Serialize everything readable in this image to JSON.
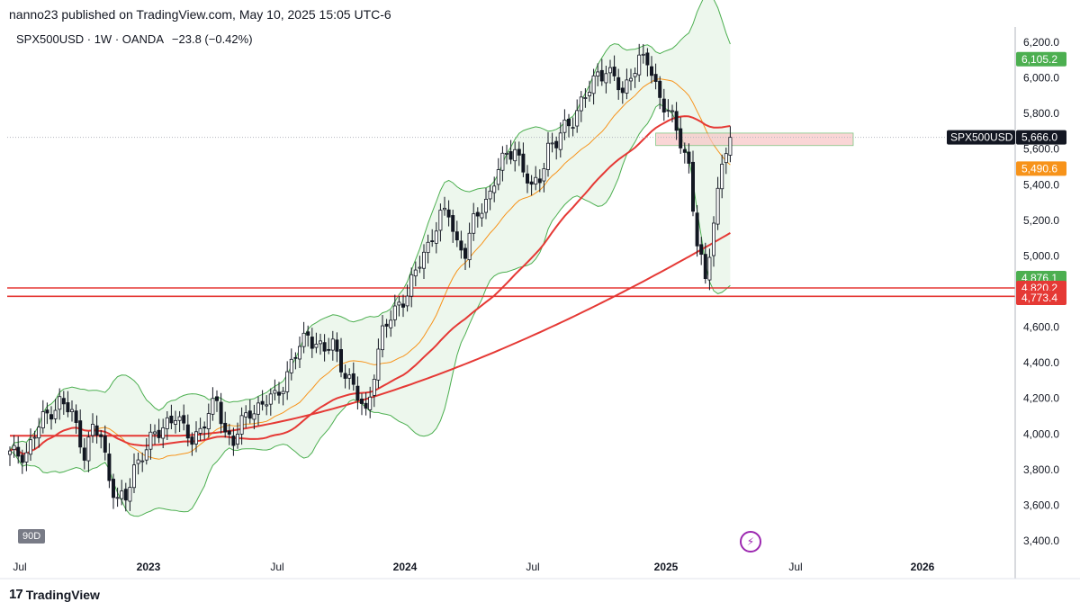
{
  "header": {
    "published": "nanno23 published on TradingView.com, May 10, 2025 15:05 UTC-6"
  },
  "symbol": {
    "name": "SPX500USD · 1W · OANDA",
    "change": "−23.8 (−0.42%)"
  },
  "footer": {
    "brand": "TradingView",
    "logo_icon": "tradingview-logo-icon"
  },
  "interval_badge": "90D",
  "flash_icon": "lightning-icon",
  "colors": {
    "candle": "#131722",
    "bb": "#4caf50",
    "bb_fill": "#e8f5e9",
    "basis": "#f7931a",
    "ma": "#e53935",
    "zone": "#f8c6c6",
    "grid": "#b2b5be"
  },
  "chart_data": {
    "type": "candlestick",
    "title": "SPX500USD · 1W · OANDA",
    "ylim": [
      3300,
      6300
    ],
    "y_ticks": [
      "6,200.0",
      "6,000.0",
      "5,800.0",
      "5,600.0",
      "5,400.0",
      "5,200.0",
      "5,000.0",
      "4,800.0",
      "4,600.0",
      "4,400.0",
      "4,200.0",
      "4,000.0",
      "3,800.0",
      "3,600.0",
      "3,400.0"
    ],
    "x_ticks": [
      "Jul",
      "2023",
      "Jul",
      "2024",
      "Jul",
      "2025",
      "Jul",
      "2026"
    ],
    "price_labels": [
      {
        "name": "bb-upper",
        "text": "6,105.2",
        "value": 6105.2,
        "color": "#4caf50"
      },
      {
        "name": "last-price",
        "text": "5,666.0",
        "prefix": "SPX500USD",
        "value": 5666.0,
        "color": "#131722"
      },
      {
        "name": "bb-basis",
        "text": "5,490.6",
        "value": 5490.6,
        "color": "#f7931a"
      },
      {
        "name": "bb-lower",
        "text": "4,876.1",
        "value": 4876.1,
        "color": "#4caf50"
      },
      {
        "name": "support-1",
        "text": "4,820.2",
        "value": 4820.2,
        "color": "#e53935"
      },
      {
        "name": "support-2",
        "text": "4,773.4",
        "value": 4773.4,
        "color": "#e53935"
      }
    ],
    "horizontal_lines": [
      4820.2,
      4773.4
    ],
    "last_price": 5666.0,
    "zone": {
      "low": 5620,
      "high": 5690,
      "from_week": 156,
      "to_week": 192
    },
    "ohlc_anchor_points": [
      [
        0,
        3880
      ],
      [
        4,
        3900
      ],
      [
        8,
        4080
      ],
      [
        10,
        4140
      ],
      [
        12,
        4180
      ],
      [
        15,
        4110
      ],
      [
        18,
        3900
      ],
      [
        20,
        4020
      ],
      [
        22,
        3980
      ],
      [
        24,
        3760
      ],
      [
        26,
        3640
      ],
      [
        28,
        3620
      ],
      [
        30,
        3810
      ],
      [
        32,
        3900
      ],
      [
        34,
        3960
      ],
      [
        36,
        4000
      ],
      [
        38,
        4080
      ],
      [
        40,
        4110
      ],
      [
        42,
        4010
      ],
      [
        44,
        3970
      ],
      [
        46,
        4040
      ],
      [
        48,
        4100
      ],
      [
        50,
        4180
      ],
      [
        52,
        4020
      ],
      [
        54,
        3960
      ],
      [
        56,
        4050
      ],
      [
        58,
        4130
      ],
      [
        60,
        4160
      ],
      [
        62,
        4180
      ],
      [
        64,
        4200
      ],
      [
        66,
        4290
      ],
      [
        68,
        4400
      ],
      [
        70,
        4480
      ],
      [
        72,
        4560
      ],
      [
        74,
        4520
      ],
      [
        76,
        4460
      ],
      [
        78,
        4500
      ],
      [
        80,
        4400
      ],
      [
        82,
        4300
      ],
      [
        84,
        4200
      ],
      [
        86,
        4120
      ],
      [
        88,
        4360
      ],
      [
        90,
        4560
      ],
      [
        92,
        4650
      ],
      [
        94,
        4750
      ],
      [
        96,
        4780
      ],
      [
        98,
        4900
      ],
      [
        100,
        5020
      ],
      [
        102,
        5120
      ],
      [
        104,
        5210
      ],
      [
        106,
        5240
      ],
      [
        108,
        5080
      ],
      [
        110,
        5020
      ],
      [
        112,
        5180
      ],
      [
        114,
        5280
      ],
      [
        116,
        5360
      ],
      [
        118,
        5480
      ],
      [
        120,
        5560
      ],
      [
        122,
        5620
      ],
      [
        124,
        5480
      ],
      [
        126,
        5360
      ],
      [
        128,
        5450
      ],
      [
        130,
        5620
      ],
      [
        132,
        5620
      ],
      [
        134,
        5720
      ],
      [
        136,
        5780
      ],
      [
        138,
        5860
      ],
      [
        140,
        5920
      ],
      [
        142,
        6030
      ],
      [
        144,
        6050
      ],
      [
        146,
        5990
      ],
      [
        148,
        5900
      ],
      [
        150,
        6040
      ],
      [
        152,
        6100
      ],
      [
        154,
        6080
      ],
      [
        156,
        5960
      ],
      [
        158,
        5860
      ],
      [
        160,
        5760
      ],
      [
        162,
        5630
      ],
      [
        164,
        5520
      ],
      [
        166,
        5070
      ],
      [
        168,
        4840
      ],
      [
        170,
        5200
      ],
      [
        172,
        5540
      ],
      [
        174,
        5666
      ]
    ]
  }
}
